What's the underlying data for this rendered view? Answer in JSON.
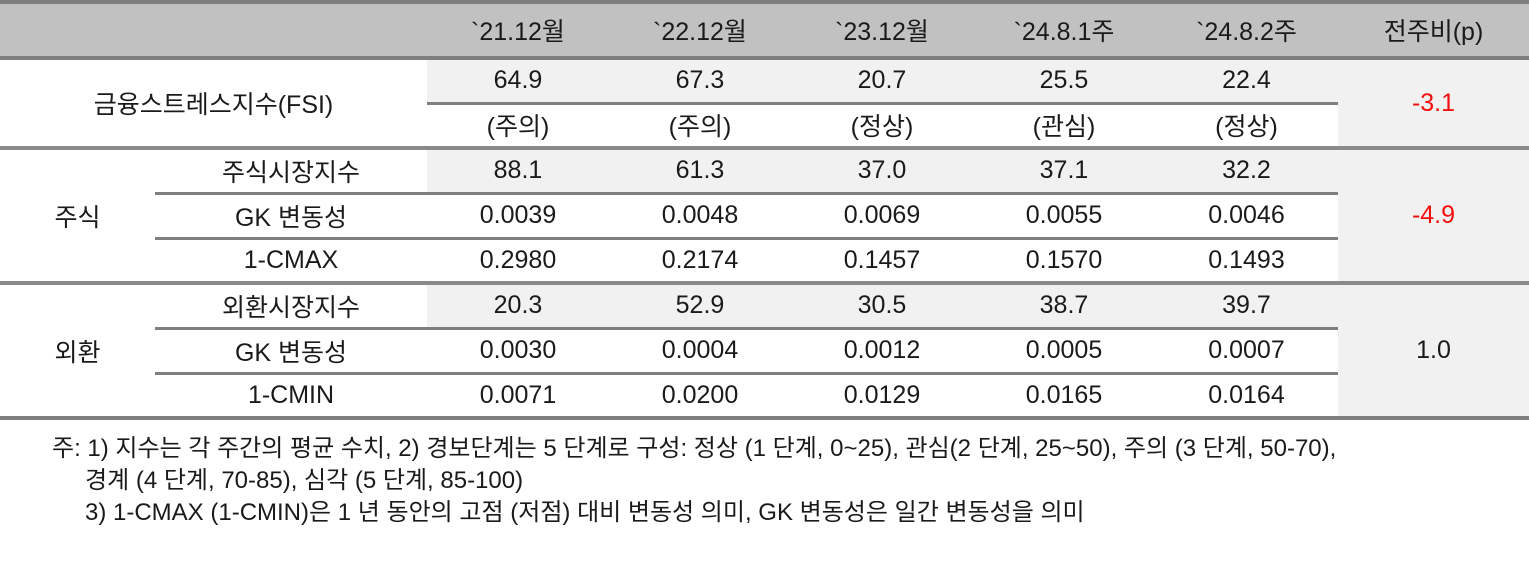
{
  "table": {
    "columns": {
      "col1": "`21.12월",
      "col2": "`22.12월",
      "col3": "`23.12월",
      "col4": "`24.8.1주",
      "col5": "`24.8.2주",
      "delta": "전주비(p)"
    },
    "fsi": {
      "label": "금융스트레스지수(FSI)",
      "values": [
        "64.9",
        "67.3",
        "20.7",
        "25.5",
        "22.4"
      ],
      "statuses": [
        "(주의)",
        "(주의)",
        "(정상)",
        "(관심)",
        "(정상)"
      ],
      "delta": "-3.1"
    },
    "stock": {
      "group_label": "주식",
      "rows": [
        {
          "label": "주식시장지수",
          "values": [
            "88.1",
            "61.3",
            "37.0",
            "37.1",
            "32.2"
          ]
        },
        {
          "label": "GK 변동성",
          "values": [
            "0.0039",
            "0.0048",
            "0.0069",
            "0.0055",
            "0.0046"
          ]
        },
        {
          "label": "1-CMAX",
          "values": [
            "0.2980",
            "0.2174",
            "0.1457",
            "0.1570",
            "0.1493"
          ]
        }
      ],
      "delta": "-4.9"
    },
    "fx": {
      "group_label": "외환",
      "rows": [
        {
          "label": "외환시장지수",
          "values": [
            "20.3",
            "52.9",
            "30.5",
            "38.7",
            "39.7"
          ]
        },
        {
          "label": "GK 변동성",
          "values": [
            "0.0030",
            "0.0004",
            "0.0012",
            "0.0005",
            "0.0007"
          ]
        },
        {
          "label": "1-CMIN",
          "values": [
            "0.0071",
            "0.0200",
            "0.0129",
            "0.0165",
            "0.0164"
          ]
        }
      ],
      "delta": "1.0"
    }
  },
  "notes": {
    "line1": "주: 1) 지수는 각 주간의 평균 수치, 2) 경보단계는 5 단계로 구성: 정상 (1 단계, 0~25), 관심(2 단계, 25~50), 주의 (3 단계, 50-70),",
    "line2": "경계 (4 단계, 70-85), 심각 (5 단계, 85-100)",
    "line3": "3) 1-CMAX (1-CMIN)은 1 년 동안의 고점 (저점) 대비 변동성 의미, GK 변동성은 일간 변동성을 의미"
  },
  "colors": {
    "header_background": "#c1c1c1",
    "row_shade": "#f1f1f1",
    "border_dark": "#7f7f7f",
    "delta_negative_text": "#f60d0d",
    "text": "#1a1a1a"
  }
}
